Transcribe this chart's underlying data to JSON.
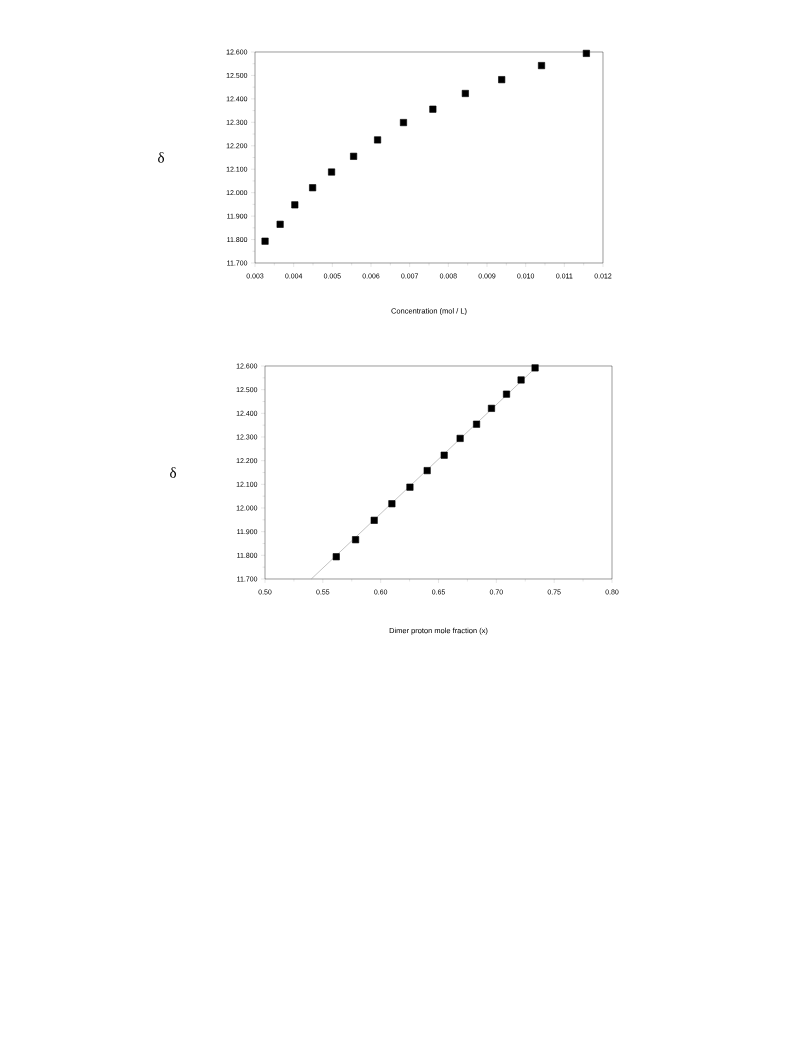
{
  "chart_data": [
    {
      "type": "scatter",
      "ylabel": "δ",
      "xlabel": "Concentration (mol / L)",
      "marker": "square",
      "xlim": [
        0.003,
        0.012
      ],
      "ylim": [
        11.7,
        12.6
      ],
      "xticks": [
        0.003,
        0.004,
        0.005,
        0.006,
        0.007,
        0.008,
        0.009,
        {
          "value": 0.01,
          "label": "0.010"
        },
        0.011,
        0.012
      ],
      "yticks": [
        {
          "value": 11.7,
          "label": "11.700"
        },
        {
          "value": 11.8,
          "label": "11.800"
        },
        {
          "value": 11.9,
          "label": "11.900"
        },
        {
          "value": 12.0,
          "label": "12.000"
        },
        {
          "value": 12.1,
          "label": "12.100"
        },
        {
          "value": 12.2,
          "label": "12.200"
        },
        {
          "value": 12.3,
          "label": "12.300"
        },
        {
          "value": 12.4,
          "label": "12.400"
        },
        {
          "value": 12.5,
          "label": "12.500"
        },
        {
          "value": 12.6,
          "label": "12.600"
        }
      ],
      "series": [
        {
          "color": "#000000",
          "x": [
            0.00326,
            0.00365,
            0.00403,
            0.00449,
            0.00498,
            0.00555,
            0.00617,
            0.00684,
            0.0076,
            0.00844,
            0.00938,
            0.01041,
            0.01157
          ],
          "values": [
            11.793,
            11.865,
            11.948,
            12.021,
            12.088,
            12.155,
            12.225,
            12.299,
            12.356,
            12.423,
            12.482,
            12.542,
            12.594
          ]
        }
      ]
    },
    {
      "type": "scatter",
      "ylabel": "δ",
      "xlabel": "Dimer proton mole fraction (x)",
      "marker": "square",
      "xlim": [
        0.5,
        0.8
      ],
      "ylim": [
        11.7,
        12.6
      ],
      "xticks": [
        {
          "value": 0.5,
          "label": "0.50"
        },
        0.55,
        {
          "value": 0.6,
          "label": "0.60"
        },
        0.65,
        {
          "value": 0.7,
          "label": "0.70"
        },
        0.75,
        {
          "value": 0.8,
          "label": "0.80"
        }
      ],
      "yticks": [
        {
          "value": 11.7,
          "label": "11.700"
        },
        {
          "value": 11.8,
          "label": "11.800"
        },
        {
          "value": 11.9,
          "label": "11.900"
        },
        {
          "value": 12.0,
          "label": "12.000"
        },
        {
          "value": 12.1,
          "label": "12.100"
        },
        {
          "value": 12.2,
          "label": "12.200"
        },
        {
          "value": 12.3,
          "label": "12.300"
        },
        {
          "value": 12.4,
          "label": "12.400"
        },
        {
          "value": 12.5,
          "label": "12.500"
        },
        {
          "value": 12.6,
          "label": "12.600"
        }
      ],
      "series": [
        {
          "type": "line",
          "color": "#9a9a9a",
          "marker": "none",
          "x": [
            0.54,
            0.7355
          ],
          "values": [
            11.7,
            12.6
          ]
        },
        {
          "color": "#000000",
          "x": [
            0.5616,
            0.5783,
            0.5944,
            0.6097,
            0.6253,
            0.6402,
            0.6549,
            0.6687,
            0.6829,
            0.6958,
            0.7088,
            0.7214,
            0.7335
          ],
          "values": [
            11.794,
            11.866,
            11.948,
            12.018,
            12.088,
            12.158,
            12.223,
            12.294,
            12.354,
            12.421,
            12.481,
            12.541,
            12.592
          ]
        }
      ]
    }
  ]
}
